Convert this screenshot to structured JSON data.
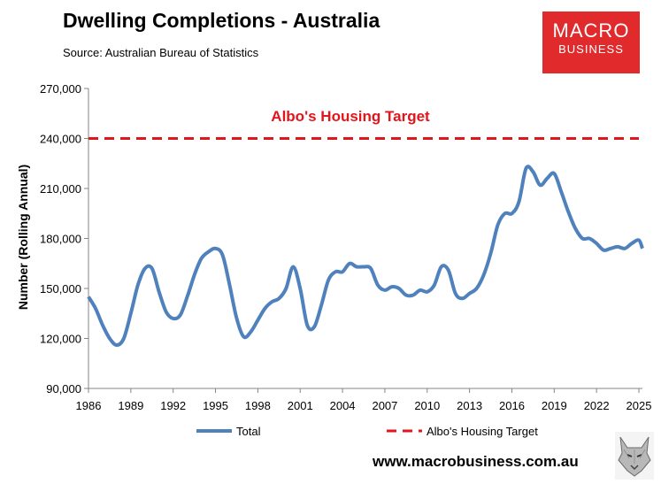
{
  "title": "Dwelling Completions - Australia",
  "subtitle": "Source: Australian Bureau of Statistics",
  "logo": {
    "line1": "MACRO",
    "line2": "BUSINESS",
    "color": "#e02a2c"
  },
  "website": "www.macrobusiness.com.au",
  "chart_data": {
    "type": "line",
    "title": "Dwelling Completions - Australia",
    "xlabel": "",
    "ylabel": "Number (Rolling Annual)",
    "ylim": [
      90000,
      270000
    ],
    "xlim": [
      1986,
      2025.25
    ],
    "yticks": [
      90000,
      120000,
      150000,
      180000,
      210000,
      240000,
      270000
    ],
    "ytick_labels": [
      "90,000",
      "120,000",
      "150,000",
      "180,000",
      "210,000",
      "240,000",
      "270,000"
    ],
    "xticks": [
      1986,
      1989,
      1992,
      1995,
      1998,
      2001,
      2004,
      2007,
      2010,
      2013,
      2016,
      2019,
      2022,
      2025
    ],
    "xtick_labels": [
      "1986",
      "1989",
      "1992",
      "1995",
      "1998",
      "2001",
      "2004",
      "2007",
      "2010",
      "2013",
      "2016",
      "2019",
      "2022",
      "2025"
    ],
    "grid": false,
    "legend": "bottom",
    "annotation": "Albo's Housing Target",
    "series": [
      {
        "name": "Total",
        "color": "#4f81bd",
        "style": "solid",
        "x": [
          1986,
          1986.5,
          1987,
          1987.5,
          1988,
          1988.5,
          1989,
          1989.5,
          1990,
          1990.5,
          1991,
          1991.5,
          1992,
          1992.5,
          1993,
          1993.5,
          1994,
          1994.5,
          1995,
          1995.5,
          1996,
          1996.5,
          1997,
          1997.5,
          1998,
          1998.5,
          1999,
          1999.5,
          2000,
          2000.5,
          2001,
          2001.5,
          2002,
          2002.5,
          2003,
          2003.5,
          2004,
          2004.5,
          2005,
          2005.5,
          2006,
          2006.5,
          2007,
          2007.5,
          2008,
          2008.5,
          2009,
          2009.5,
          2010,
          2010.5,
          2011,
          2011.5,
          2012,
          2012.5,
          2013,
          2013.5,
          2014,
          2014.5,
          2015,
          2015.5,
          2016,
          2016.5,
          2017,
          2017.5,
          2018,
          2018.5,
          2019,
          2019.5,
          2020,
          2020.5,
          2021,
          2021.5,
          2022,
          2022.5,
          2023,
          2023.5,
          2024,
          2024.5,
          2025,
          2025.25
        ],
        "y": [
          145000,
          138000,
          128000,
          120000,
          116000,
          120000,
          135000,
          152000,
          162000,
          162000,
          148000,
          136000,
          132000,
          134000,
          145000,
          158000,
          168000,
          172000,
          174000,
          170000,
          152000,
          132000,
          121000,
          124000,
          131000,
          138000,
          142000,
          144000,
          150000,
          163000,
          150000,
          128000,
          127000,
          140000,
          155000,
          160000,
          160000,
          165000,
          163000,
          163000,
          162000,
          152000,
          149000,
          151000,
          150000,
          146000,
          146000,
          149000,
          148000,
          152000,
          163000,
          161000,
          147000,
          144000,
          147000,
          150000,
          158000,
          171000,
          188000,
          195000,
          195000,
          202000,
          222000,
          220000,
          212000,
          216000,
          219000,
          208000,
          196000,
          186000,
          180000,
          180000,
          177000,
          173000,
          174000,
          175000,
          174000,
          177000,
          179000,
          174000
        ]
      },
      {
        "name": "Albo's Housing Target",
        "color": "#e3151c",
        "style": "dashed",
        "x": [
          1986,
          2025
        ],
        "y": [
          240000,
          240000
        ]
      }
    ]
  }
}
